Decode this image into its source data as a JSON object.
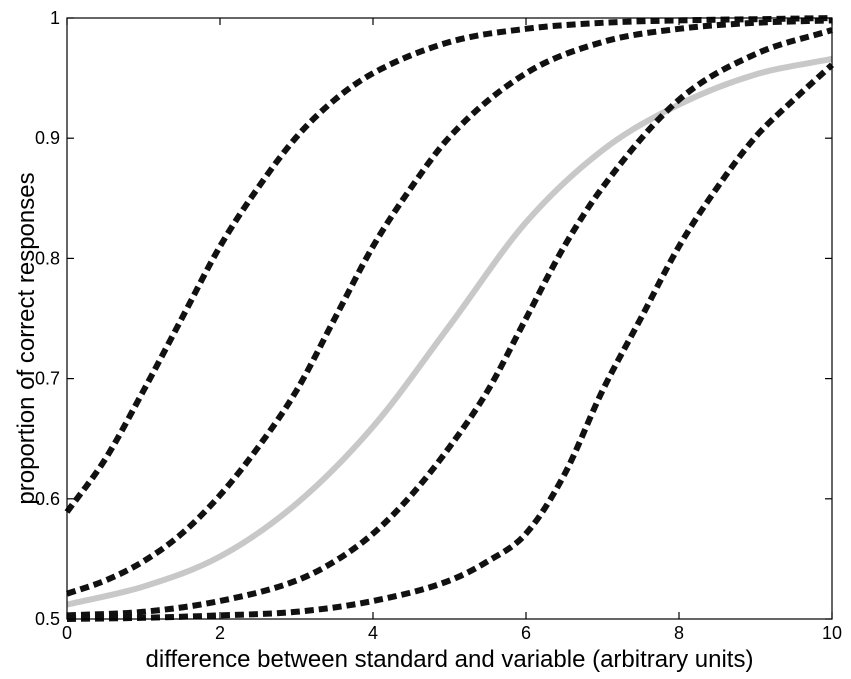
{
  "chart_data": {
    "type": "line",
    "title": "",
    "xlabel": "difference between standard and variable (arbitrary units)",
    "ylabel": "proportion of correct responses",
    "xlim": [
      0,
      10
    ],
    "ylim": [
      0.5,
      1
    ],
    "xticks": [
      0,
      2,
      4,
      6,
      8,
      10
    ],
    "xtick_labels": [
      "0",
      "2",
      "4",
      "6",
      "8",
      "10"
    ],
    "yticks": [
      0.5,
      0.6,
      0.7,
      0.8,
      0.9,
      1.0
    ],
    "ytick_labels": [
      "0.5",
      "0.6",
      "0.7",
      "0.8",
      "0.9",
      "1"
    ],
    "grid": false,
    "legend": false,
    "series": [
      {
        "style": "dashed",
        "color": "#111111",
        "x": [
          0,
          0.5,
          1,
          1.5,
          2,
          2.5,
          3,
          3.5,
          4,
          5,
          6,
          7,
          8,
          9,
          10
        ],
        "y": [
          0.589,
          0.633,
          0.69,
          0.75,
          0.81,
          0.859,
          0.901,
          0.932,
          0.954,
          0.98,
          0.991,
          0.996,
          0.998,
          0.999,
          1.0
        ]
      },
      {
        "style": "dashed",
        "color": "#111111",
        "x": [
          0,
          0.5,
          1,
          1.5,
          2,
          2.5,
          3,
          3.5,
          4,
          4.5,
          5,
          6,
          7,
          8,
          9,
          10
        ],
        "y": [
          0.521,
          0.532,
          0.548,
          0.571,
          0.603,
          0.643,
          0.69,
          0.75,
          0.81,
          0.859,
          0.901,
          0.954,
          0.98,
          0.991,
          0.996,
          0.998
        ]
      },
      {
        "style": "dashed",
        "color": "#111111",
        "x": [
          0,
          1,
          2,
          3,
          3.5,
          4,
          4.5,
          5,
          5.5,
          6,
          6.5,
          7,
          8,
          9,
          10
        ],
        "y": [
          0.503,
          0.506,
          0.515,
          0.532,
          0.548,
          0.571,
          0.603,
          0.643,
          0.69,
          0.75,
          0.81,
          0.859,
          0.932,
          0.97,
          0.99
        ]
      },
      {
        "style": "dashed",
        "color": "#111111",
        "x": [
          0,
          1,
          2,
          3,
          4,
          5,
          5.5,
          6,
          6.5,
          7,
          7.5,
          8,
          8.5,
          9,
          9.5,
          10
        ],
        "y": [
          0.5,
          0.501,
          0.503,
          0.506,
          0.515,
          0.532,
          0.548,
          0.571,
          0.62,
          0.69,
          0.75,
          0.81,
          0.859,
          0.901,
          0.932,
          0.961
        ]
      },
      {
        "style": "solid",
        "color": "#c8c8c8",
        "x": [
          0,
          1,
          2,
          3,
          4,
          5,
          6,
          7,
          8,
          9,
          10
        ],
        "y": [
          0.512,
          0.527,
          0.552,
          0.596,
          0.66,
          0.744,
          0.83,
          0.89,
          0.928,
          0.953,
          0.966
        ]
      }
    ]
  }
}
